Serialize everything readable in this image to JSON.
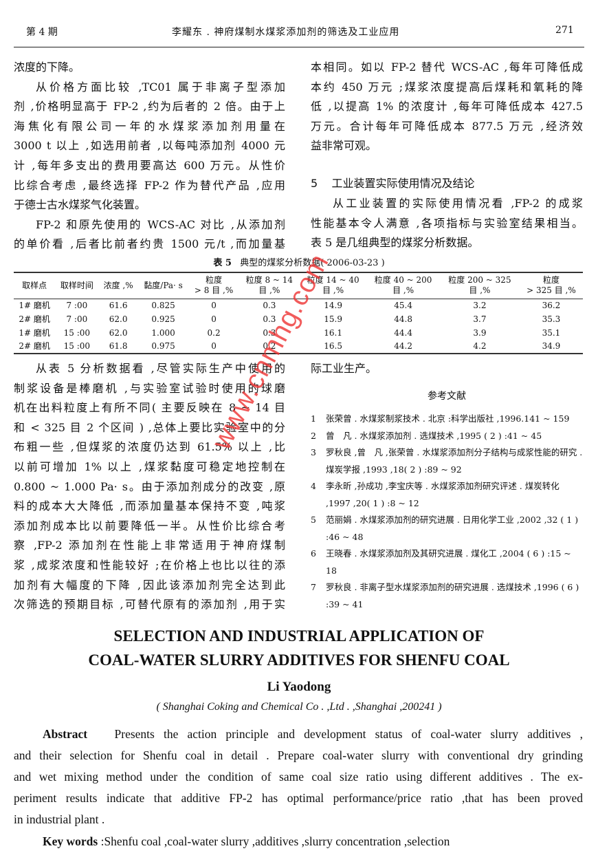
{
  "header": {
    "issue": "第 4 期",
    "running_title": "李耀东 . 神府煤制水煤浆添加剂的筛选及工业应用",
    "page_number": "271"
  },
  "left_top": [
    "浓度的下降。",
    "从价格方面比较 ,TC01 属于非离子型添加",
    "剂 ,价格明显高于 FP-2 ,约为后者的 2 倍。由于上",
    "海焦化有限公司一年的水煤浆添加剂用量在",
    "3000 t 以上 ,如选用前者 ,以每吨添加剂 4000 元",
    "计 ,每年多支出的费用要高达 600 万元。从性价",
    "比综合考虑 ,最终选择 FP-2 作为替代产品 ,应用",
    "于德士古水煤浆气化装置。",
    "FP-2 和原先使用的 WCS-AC 对比 ,从添加剂",
    "的单价看 ,后者比前者约贵 1500 元/t ,而加量基"
  ],
  "right_top": [
    "本相同。如以 FP-2 替代 WCS-AC ,每年可降低成",
    "本约 450 万元 ;煤浆浓度提高后煤耗和氧耗的降",
    "低 ,以提高 1% 的浓度计 ,每年可降低成本 427.5",
    "万元。合计每年可降低成本 877.5 万元 ,经济效",
    "益非常可观。"
  ],
  "section5": {
    "number": "5",
    "title": "工业装置实际使用情况及结论"
  },
  "right_sec5": [
    "从工业装置的实际使用情况看 ,FP-2 的成浆",
    "性能基本令人满意 ,各项指标与实验室结果相当。",
    "表 5 是几组典型的煤浆分析数据。"
  ],
  "table": {
    "caption_label": "表 5",
    "caption": "典型的煤浆分析数据( 2006-03-23 )",
    "headers": [
      [
        "取样点",
        ""
      ],
      [
        "取样时间",
        ""
      ],
      [
        "浓度 ,%",
        ""
      ],
      [
        "黏度/Pa· s",
        ""
      ],
      [
        "粒度",
        "> 8 目 ,%"
      ],
      [
        "粒度 8 ~ 14",
        "目 ,%"
      ],
      [
        "粒度 14 ~ 40",
        "目 ,%"
      ],
      [
        "粒度 40 ~ 200",
        "目 ,%"
      ],
      [
        "粒度 200 ~ 325",
        "目 ,%"
      ],
      [
        "粒度",
        "> 325 目 ,%"
      ]
    ],
    "rows": [
      [
        "1# 磨机",
        "7 :00",
        "61.6",
        "0.825",
        "0",
        "0.3",
        "14.9",
        "45.4",
        "3.2",
        "36.2"
      ],
      [
        "2# 磨机",
        "7 :00",
        "62.0",
        "0.925",
        "0",
        "0.3",
        "15.9",
        "44.8",
        "3.7",
        "35.3"
      ],
      [
        "1# 磨机",
        "15 :00",
        "62.0",
        "1.000",
        "0.2",
        "0.3",
        "16.1",
        "44.4",
        "3.9",
        "35.1"
      ],
      [
        "2# 磨机",
        "15 :00",
        "61.8",
        "0.975",
        "0",
        "0.2",
        "16.5",
        "44.2",
        "4.2",
        "34.9"
      ]
    ]
  },
  "left_bottom": [
    "从表 5 分析数据看 ,尽管实际生产中使用的",
    "制浆设备是棒磨机 ,与实验室试验时使用的球磨",
    "机在出料粒度上有所不同( 主要反映在 8 ~ 14 目",
    "和 < 325 目 2 个区间 ) ,总体上要比实验室中的分",
    "布粗一些 ,但煤浆的浓度仍达到 61.5% 以上 ,比",
    "以前可增加 1% 以上 ,煤浆黏度可稳定地控制在",
    "0.800 ~ 1.000 Pa· s。由于添加剂成分的改变 ,原",
    "料的成本大大降低 ,而添加量基本保持不变 ,吨浆",
    "添加剂成本比以前要降低一半。从性价比综合考",
    "察 ,FP-2 添加剂在性能上非常适用于神府煤制",
    "浆 ,成浆浓度和性能较好 ;在价格上也比以往的添",
    "加剂有大幅度的下降 ,因此该添加剂完全达到此",
    "次筛选的预期目标 ,可替代原有的添加剂 ,用于实"
  ],
  "right_bottom": "际工业生产。",
  "references": {
    "title": "参考文献",
    "items": [
      {
        "n": "1",
        "text": "张荣曾 . 水煤浆制浆技术 . 北京 :科学出版社 ,1996.141 ~ 159"
      },
      {
        "n": "2",
        "text": "曾　凡 . 水煤浆添加剂 . 选煤技术 ,1995 ( 2 ) :41 ~ 45"
      },
      {
        "n": "3",
        "text": "罗秋良 ,曾　凡 ,张荣曾 . 水煤浆添加剂分子结构与成浆性能的研究 . 煤炭学报 ,1993 ,18( 2 ) :89 ~ 92"
      },
      {
        "n": "4",
        "text": "李永昕 ,孙成功 ,李宝庆等 . 水煤浆添加剂研究评述 . 煤炭转化 ,1997 ,20( 1 ) :8 ~ 12"
      },
      {
        "n": "5",
        "text": "范丽娟 . 水煤浆添加剂的研究进展 . 日用化学工业 ,2002 ,32 ( 1 ) :46 ~ 48"
      },
      {
        "n": "6",
        "text": "王晓春 . 水煤浆添加剂及其研究进展 . 煤化工 ,2004 ( 6 ) :15 ~ 18"
      },
      {
        "n": "7",
        "text": "罗秋良 . 非离子型水煤浆添加剂的研究进展 . 选煤技术 ,1996 ( 6 ) :39 ~ 41"
      }
    ]
  },
  "english": {
    "title_line1": "SELECTION AND INDUSTRIAL APPLICATION OF",
    "title_line2": "COAL-WATER SLURRY ADDITIVES FOR SHENFU COAL",
    "author": "Li Yaodong",
    "affiliation": "( Shanghai Coking and Chemical Co . ,Ltd . ,Shanghai ,200241 )",
    "abstract_label": "Abstract",
    "abstract_lines": [
      "Presents the action principle and development status of coal-water slurry additives ,",
      "and their selection for Shenfu coal in detail . Prepare coal-water slurry with conventional dry grinding",
      "and wet mixing method under the condition of same coal size ratio using different additives . The ex-",
      "periment results indicate that additive FP-2 has optimal performance/price ratio ,that has been proved",
      "in industrial plant ."
    ],
    "keywords_label": "Key words",
    "keywords": ":Shenfu coal ,coal-water slurry ,additives ,slurry concentration ,selection"
  },
  "watermark": "www.cnmhg.com"
}
